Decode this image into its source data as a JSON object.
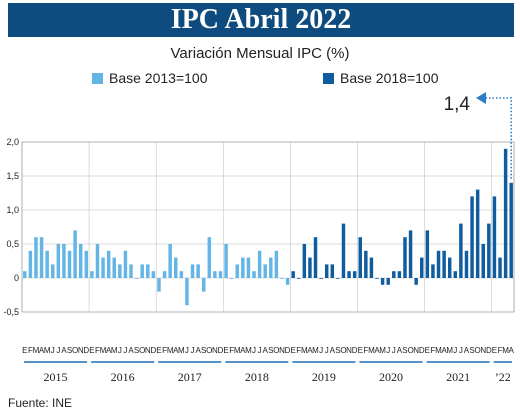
{
  "header": {
    "title": "IPC Abril 2022",
    "subtitle": "Variación Mensual IPC (%)",
    "source": "Fuente: INE"
  },
  "colors": {
    "base2013": "#62b5e5",
    "base2018": "#0f5c9e",
    "title_bg": "#0e4b7e"
  },
  "chart_data": {
    "type": "bar",
    "title": "Variación Mensual IPC (%)",
    "xlabel": "",
    "ylabel": "",
    "ylim": [
      -0.5,
      2.0
    ],
    "yticks": [
      2.0,
      1.5,
      1.0,
      0.5,
      0,
      -0.5
    ],
    "ytick_labels": [
      "2,0",
      "1,5",
      "1,0",
      "0,5",
      "0",
      "-0,5"
    ],
    "grid": true,
    "legend_position": "top-left",
    "annotation": "1,4",
    "month_letters": [
      "E",
      "F",
      "M",
      "A",
      "M",
      "J",
      "J",
      "A",
      "S",
      "O",
      "N",
      "D"
    ],
    "years": [
      "2015",
      "2016",
      "2017",
      "2018",
      "2019",
      "2020",
      "2021",
      "’22"
    ],
    "series": [
      {
        "name": "Base 2013=100",
        "start": "2015-01",
        "values": [
          0.1,
          0.4,
          0.6,
          0.6,
          0.4,
          0.2,
          0.5,
          0.5,
          0.4,
          0.7,
          0.5,
          0.4,
          0.1,
          0.5,
          0.3,
          0.4,
          0.3,
          0.2,
          0.4,
          0.2,
          0.0,
          0.2,
          0.2,
          0.1,
          -0.2,
          0.1,
          0.5,
          0.3,
          0.1,
          -0.4,
          0.2,
          0.2,
          -0.2,
          0.6,
          0.1,
          0.1,
          0.5,
          0.0,
          0.2,
          0.3,
          0.3,
          0.1,
          0.4,
          0.2,
          0.3,
          0.4,
          0.0,
          -0.1
        ]
      },
      {
        "name": "Base 2018=100",
        "start": "2019-01",
        "values": [
          0.1,
          0.0,
          0.5,
          0.3,
          0.6,
          0.0,
          0.2,
          0.2,
          0.0,
          0.8,
          0.1,
          0.1,
          0.6,
          0.4,
          0.3,
          0.0,
          -0.1,
          -0.1,
          0.1,
          0.1,
          0.6,
          0.7,
          -0.1,
          0.3,
          0.7,
          0.2,
          0.4,
          0.4,
          0.3,
          0.1,
          0.8,
          0.4,
          1.2,
          1.3,
          0.5,
          0.8,
          1.2,
          0.3,
          1.9,
          1.4
        ]
      }
    ]
  }
}
